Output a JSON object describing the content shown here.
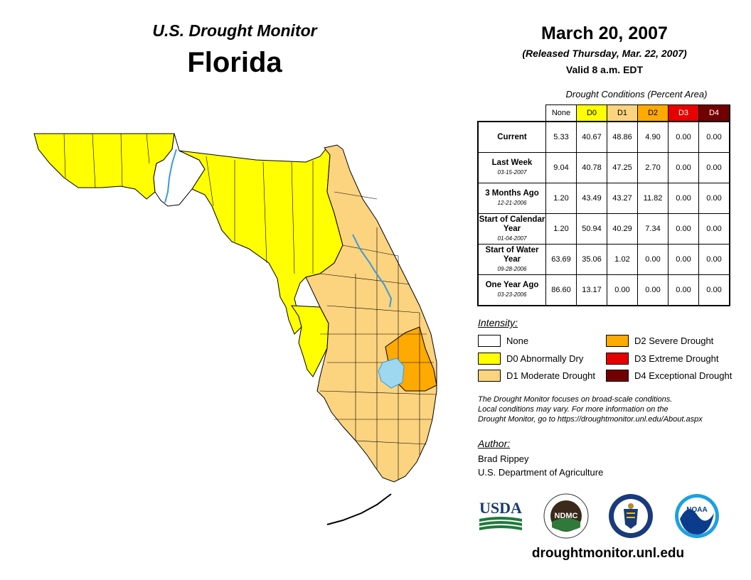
{
  "header": {
    "subtitle": "U.S. Drought Monitor",
    "state": "Florida",
    "date": "March 20, 2007",
    "released": "(Released Thursday, Mar. 22, 2007)",
    "valid": "Valid 8 a.m. EDT"
  },
  "table": {
    "caption": "Drought Conditions (Percent Area)",
    "columns": [
      "None",
      "D0",
      "D1",
      "D2",
      "D3",
      "D4"
    ],
    "column_colors": [
      "#ffffff",
      "#ffff00",
      "#fcd37f",
      "#ffaa00",
      "#e60000",
      "#730000"
    ],
    "rows": [
      {
        "label": "Current",
        "date": "",
        "values": [
          "5.33",
          "40.67",
          "48.86",
          "4.90",
          "0.00",
          "0.00"
        ]
      },
      {
        "label": "Last Week",
        "date": "03-15-2007",
        "values": [
          "9.04",
          "40.78",
          "47.25",
          "2.70",
          "0.00",
          "0.00"
        ]
      },
      {
        "label": "3 Months Ago",
        "date": "12-21-2006",
        "values": [
          "1.20",
          "43.49",
          "43.27",
          "11.82",
          "0.00",
          "0.00"
        ]
      },
      {
        "label": "Start of Calendar Year",
        "date": "01-04-2007",
        "values": [
          "1.20",
          "50.94",
          "40.29",
          "7.34",
          "0.00",
          "0.00"
        ]
      },
      {
        "label": "Start of Water Year",
        "date": "09-28-2006",
        "values": [
          "63.69",
          "35.06",
          "1.02",
          "0.00",
          "0.00",
          "0.00"
        ]
      },
      {
        "label": "One Year Ago",
        "date": "03-23-2006",
        "values": [
          "86.60",
          "13.17",
          "0.00",
          "0.00",
          "0.00",
          "0.00"
        ]
      }
    ]
  },
  "legend": {
    "title": "Intensity:",
    "items": [
      {
        "label": "None",
        "color": "#ffffff"
      },
      {
        "label": "D0 Abnormally Dry",
        "color": "#ffff00"
      },
      {
        "label": "D1 Moderate Drought",
        "color": "#fcd37f"
      },
      {
        "label": "D2 Severe Drought",
        "color": "#ffaa00"
      },
      {
        "label": "D3 Extreme Drought",
        "color": "#e60000"
      },
      {
        "label": "D4 Exceptional Drought",
        "color": "#730000"
      }
    ]
  },
  "note": {
    "line1": "The Drought Monitor focuses on broad-scale conditions.",
    "line2": "Local conditions may vary. For more information on the",
    "line3": "Drought Monitor, go to https://droughtmonitor.unl.edu/About.aspx"
  },
  "author": {
    "title": "Author:",
    "name": "Brad Rippey",
    "org": "U.S. Department of Agriculture"
  },
  "logos": {
    "usda": "USDA",
    "ndmc": "NDMC",
    "noaa": "NOAA"
  },
  "map_colors": {
    "none": "#ffffff",
    "d0": "#ffff00",
    "d1": "#fcd37f",
    "d2": "#ffaa00",
    "water": "#9dd7f0",
    "river": "#3b9bd8"
  },
  "footer": {
    "site": "droughtmonitor.unl.edu"
  }
}
